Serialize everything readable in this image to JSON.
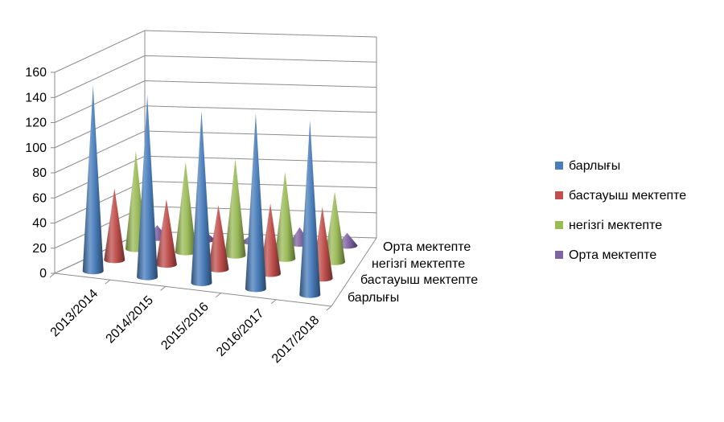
{
  "chart_data": {
    "type": "bar",
    "subtype": "3d-cone",
    "categories": [
      "2013/2014",
      "2014/2015",
      "2015/2016",
      "2016/2017",
      "2017/2018"
    ],
    "series": [
      {
        "name": "барлығы",
        "color": "#4a7ebb",
        "values": [
          148,
          145,
          137,
          140,
          139
        ]
      },
      {
        "name": "бастауыш мектепте",
        "color": "#c0504d",
        "values": [
          57,
          52,
          51,
          56,
          57
        ]
      },
      {
        "name": "негізгі мектепте",
        "color": "#9bbb59",
        "values": [
          78,
          72,
          77,
          69,
          56
        ]
      },
      {
        "name": "Орта мектепте",
        "color": "#8064a2",
        "values": [
          10,
          7,
          6,
          13,
          10
        ]
      }
    ],
    "depth_labels": [
      "Орта мектепте",
      "негізгі мектепте",
      "бастауыш мектепте",
      "барлығы"
    ],
    "y_ticks": [
      "0",
      "20",
      "40",
      "60",
      "80",
      "100",
      "120",
      "140",
      "160"
    ],
    "ylim": [
      0,
      160
    ],
    "grid": true,
    "legend_position": "right"
  }
}
